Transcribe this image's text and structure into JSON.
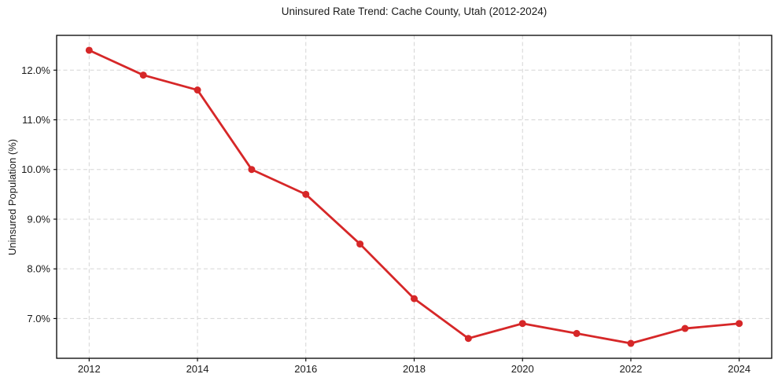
{
  "figure": {
    "background": "#ffffff"
  },
  "chart_data": {
    "type": "line",
    "title": "Uninsured Rate Trend: Cache County, Utah (2012-2024)",
    "xlabel": "",
    "ylabel": "Uninsured Population (%)",
    "x": [
      2012,
      2013,
      2014,
      2015,
      2016,
      2017,
      2018,
      2019,
      2020,
      2021,
      2022,
      2023,
      2024
    ],
    "values": [
      12.4,
      11.9,
      11.6,
      10.0,
      9.5,
      8.5,
      7.4,
      6.6,
      6.9,
      6.7,
      6.5,
      6.8,
      6.9
    ],
    "xticks": [
      2012,
      2014,
      2016,
      2018,
      2020,
      2022,
      2024
    ],
    "yticks": [
      7.0,
      8.0,
      9.0,
      10.0,
      11.0,
      12.0
    ],
    "ytick_decimals": 1,
    "ytick_suffix": "%",
    "xlim": [
      2011.4,
      2024.6
    ],
    "ylim": [
      6.2,
      12.7
    ],
    "grid": true,
    "grid_style": "dashed",
    "legend": "none",
    "colors": {
      "line": "#d62728",
      "marker": "#d62728",
      "grid": "#d5d5d5",
      "spine": "#000000",
      "text": "#1a1a1a"
    }
  }
}
